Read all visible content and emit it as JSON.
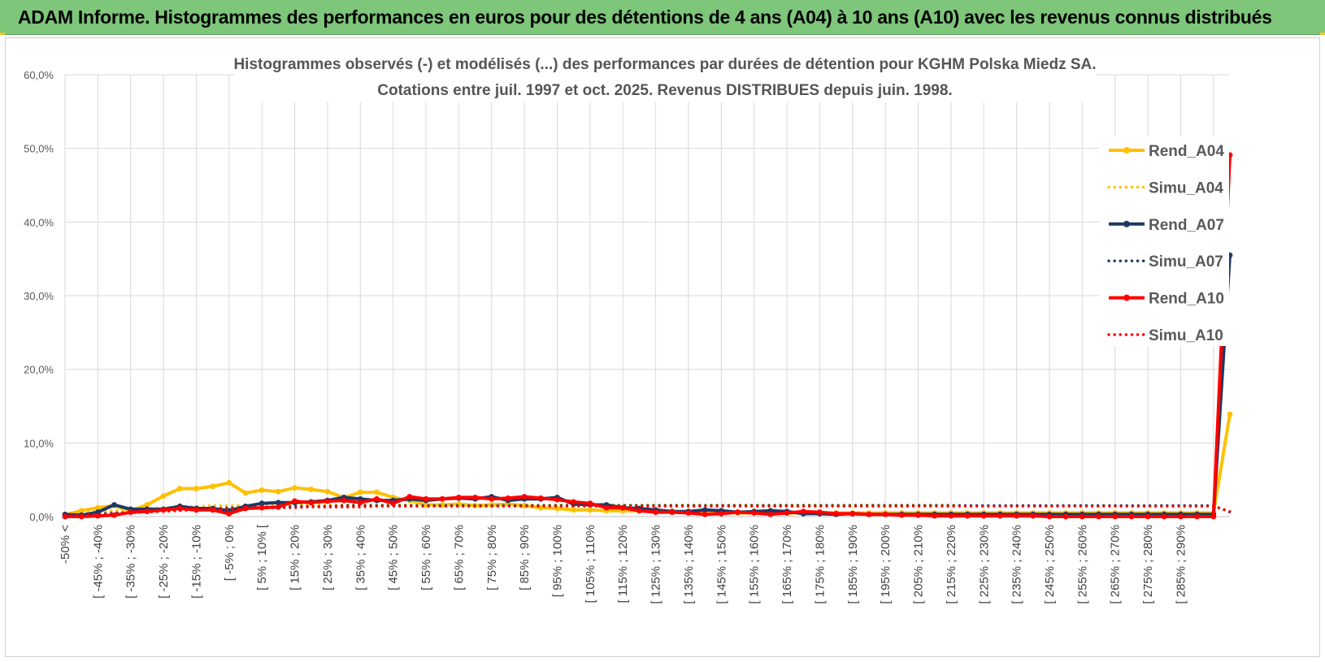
{
  "banner": {
    "title": "ADAM Informe. Histogrammes des performances en euros pour des détentions de 4 ans (A04) à 10 ans (A10) avec les revenus connus distribués",
    "color": "#7dc67a"
  },
  "chart_data": {
    "type": "line",
    "title_lines": [
      "Histogrammes observés (-) et modélisés (...) des performances par durées de détention pour KGHM Polska Miedz SA.",
      "Cotations entre juil. 1997 et oct. 2025. Revenus DISTRIBUES depuis juin. 1998."
    ],
    "ylim": [
      0,
      60
    ],
    "yticks": [
      "0,0%",
      "10,0%",
      "20,0%",
      "30,0%",
      "40,0%",
      "50,0%",
      "60,0%"
    ],
    "x_labels": [
      "-50% <",
      "[ -45% ; -40%",
      "[ -35% ; -30%",
      "[ -25% ; -20%",
      "[ -15% ; -10%",
      "[ -5% ; 0%",
      "[ 5% ; 10% [",
      "[ 15% ; 20%",
      "[ 25% ; 30%",
      "[ 35% ; 40%",
      "[ 45% ; 50%",
      "[ 55% ; 60%",
      "[ 65% ; 70%",
      "[ 75% ; 80%",
      "[ 85% ; 90%",
      "[ 95% ; 100%",
      "[ 105% ; 110%",
      "[ 115% ; 120%",
      "[ 125% ; 130%",
      "[ 135% ; 140%",
      "[ 145% ; 150%",
      "[ 155% ; 160%",
      "[ 165% ; 170%",
      "[ 175% ; 180%",
      "[ 185% ; 190%",
      "[ 195% ; 200%",
      "[ 205% ; 210%",
      "[ 215% ; 220%",
      "[ 225% ; 230%",
      "[ 235% ; 240%",
      "[ 245% ; 250%",
      "[ 255% ; 260%",
      "[ 265% ; 270%",
      "[ 275% ; 280%",
      "[ 285% ; 290%"
    ],
    "grid": true,
    "legend_position": "right",
    "series": [
      {
        "name": "Rend_A04",
        "style": "solid",
        "color": "#ffc000",
        "values": [
          0.2,
          0.8,
          1.2,
          1.5,
          0.8,
          1.6,
          2.8,
          3.8,
          3.8,
          4.1,
          4.6,
          3.2,
          3.6,
          3.4,
          3.9,
          3.7,
          3.4,
          2.6,
          3.3,
          3.3,
          2.6,
          2.2,
          1.6,
          1.6,
          1.7,
          1.5,
          1.6,
          1.7,
          1.5,
          1.2,
          1.1,
          0.9,
          0.9,
          0.8,
          0.8,
          0.8,
          0.7,
          0.7,
          0.6,
          0.6,
          0.6,
          0.5,
          0.5,
          0.5,
          0.5,
          0.5,
          0.5,
          0.5,
          0.5,
          0.5,
          0.5,
          0.5,
          0.5,
          0.5,
          0.5,
          0.5,
          0.5,
          0.5,
          0.5,
          0.5,
          0.5,
          0.5,
          0.5,
          0.5,
          0.5,
          0.5,
          0.5,
          0.5,
          0.5,
          0.5,
          0.5,
          13.9
        ]
      },
      {
        "name": "Simu_A04",
        "style": "dotted",
        "color": "#ffc000",
        "values": [
          0.5,
          0.6,
          0.7,
          0.8,
          1.0,
          1.1,
          1.2,
          1.3,
          1.4,
          1.5,
          1.5,
          1.5,
          1.6,
          1.6,
          1.6,
          1.6,
          1.6,
          1.6,
          1.6,
          1.6,
          1.6,
          1.6,
          1.6,
          1.6,
          1.6,
          1.6,
          1.6,
          1.6,
          1.6,
          1.6,
          1.6,
          1.6,
          1.6,
          1.6,
          1.6,
          1.6,
          1.6,
          1.6,
          1.6,
          1.6,
          1.6,
          1.6,
          1.6,
          1.6,
          1.6,
          1.6,
          1.6,
          1.6,
          1.6,
          1.6,
          1.6,
          1.6,
          1.6,
          1.6,
          1.6,
          1.5,
          1.5,
          1.5,
          1.5,
          1.5,
          1.5,
          1.5,
          1.5,
          1.5,
          1.5,
          1.4,
          1.4,
          1.4,
          1.4,
          1.4,
          1.4,
          0.8
        ]
      },
      {
        "name": "Rend_A07",
        "style": "solid",
        "color": "#1f3864",
        "values": [
          0.3,
          0.2,
          0.6,
          1.6,
          1.0,
          1.0,
          1.0,
          1.4,
          1.1,
          1.1,
          0.8,
          1.4,
          1.8,
          1.9,
          1.9,
          2.0,
          2.2,
          2.6,
          2.4,
          2.2,
          2.2,
          2.4,
          2.2,
          2.4,
          2.5,
          2.4,
          2.7,
          2.2,
          2.4,
          2.4,
          2.6,
          1.7,
          1.6,
          1.6,
          1.2,
          1.1,
          0.9,
          0.7,
          0.7,
          0.9,
          0.8,
          0.6,
          0.7,
          0.8,
          0.7,
          0.4,
          0.4,
          0.3,
          0.4,
          0.3,
          0.3,
          0.3,
          0.3,
          0.3,
          0.3,
          0.3,
          0.3,
          0.3,
          0.3,
          0.3,
          0.3,
          0.3,
          0.3,
          0.3,
          0.3,
          0.3,
          0.3,
          0.3,
          0.3,
          0.3,
          0.3,
          35.5
        ]
      },
      {
        "name": "Simu_A07",
        "style": "dotted",
        "color": "#1f3864",
        "values": [
          0.3,
          0.3,
          0.4,
          0.5,
          0.6,
          0.7,
          0.8,
          0.9,
          1.0,
          1.1,
          1.2,
          1.2,
          1.3,
          1.3,
          1.4,
          1.4,
          1.4,
          1.5,
          1.5,
          1.5,
          1.5,
          1.5,
          1.5,
          1.5,
          1.5,
          1.5,
          1.5,
          1.5,
          1.5,
          1.5,
          1.5,
          1.5,
          1.5,
          1.5,
          1.5,
          1.5,
          1.5,
          1.5,
          1.5,
          1.5,
          1.5,
          1.5,
          1.5,
          1.5,
          1.5,
          1.5,
          1.5,
          1.5,
          1.5,
          1.5,
          1.5,
          1.5,
          1.5,
          1.5,
          1.5,
          1.5,
          1.5,
          1.5,
          1.5,
          1.5,
          1.5,
          1.5,
          1.5,
          1.5,
          1.5,
          1.5,
          1.5,
          1.5,
          1.5,
          1.5,
          1.5,
          0.6
        ]
      },
      {
        "name": "Rend_A10",
        "style": "solid",
        "color": "#ff0000",
        "values": [
          0.0,
          0.0,
          0.1,
          0.2,
          0.6,
          0.7,
          0.9,
          1.1,
          0.9,
          0.9,
          0.4,
          1.1,
          1.2,
          1.3,
          2.1,
          1.9,
          2.1,
          2.2,
          1.9,
          2.4,
          1.8,
          2.7,
          2.4,
          2.4,
          2.6,
          2.6,
          2.4,
          2.5,
          2.7,
          2.5,
          2.3,
          2.0,
          1.8,
          1.2,
          1.2,
          0.8,
          0.6,
          0.6,
          0.5,
          0.3,
          0.4,
          0.6,
          0.5,
          0.3,
          0.5,
          0.7,
          0.6,
          0.4,
          0.4,
          0.3,
          0.3,
          0.2,
          0.2,
          0.1,
          0.1,
          0.1,
          0.1,
          0.1,
          0.1,
          0.1,
          0.0,
          0.0,
          0.0,
          0.0,
          0.0,
          0.0,
          0.0,
          0.0,
          0.0,
          0.0,
          0.0,
          49.1
        ]
      },
      {
        "name": "Simu_A10",
        "style": "dotted",
        "color": "#ff0000",
        "values": [
          0.2,
          0.2,
          0.3,
          0.4,
          0.5,
          0.6,
          0.7,
          0.8,
          0.9,
          1.0,
          1.0,
          1.1,
          1.1,
          1.2,
          1.2,
          1.3,
          1.3,
          1.3,
          1.3,
          1.4,
          1.4,
          1.4,
          1.4,
          1.4,
          1.4,
          1.4,
          1.4,
          1.4,
          1.4,
          1.4,
          1.4,
          1.4,
          1.4,
          1.4,
          1.4,
          1.4,
          1.4,
          1.4,
          1.4,
          1.4,
          1.4,
          1.4,
          1.4,
          1.4,
          1.4,
          1.4,
          1.4,
          1.4,
          1.4,
          1.4,
          1.4,
          1.4,
          1.4,
          1.4,
          1.4,
          1.4,
          1.4,
          1.4,
          1.4,
          1.4,
          1.4,
          1.4,
          1.4,
          1.4,
          1.4,
          1.4,
          1.4,
          1.4,
          1.4,
          1.4,
          1.4,
          0.7
        ]
      }
    ]
  }
}
